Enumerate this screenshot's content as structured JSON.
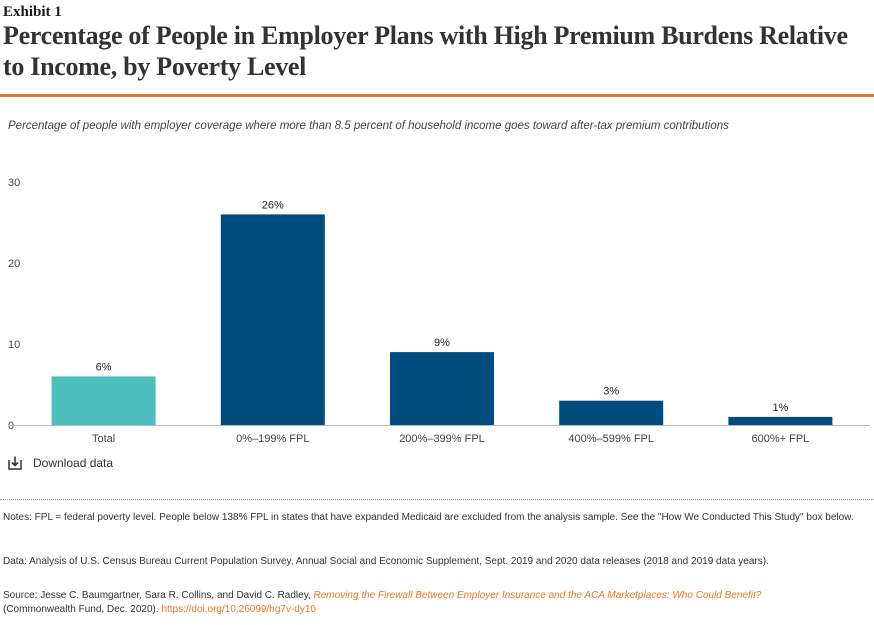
{
  "header": {
    "exhibit": "Exhibit 1",
    "title": "Percentage of People in Employer Plans with High Premium Burdens Relative to Income, by Poverty Level",
    "accent_color": "#e87722"
  },
  "subtitle": "Percentage of people with employer coverage where more than 8.5 percent of household income goes toward after-tax premium contributions",
  "chart_data": {
    "type": "bar",
    "title": "",
    "xlabel": "",
    "ylabel": "",
    "categories": [
      "Total",
      "0%–199% FPL",
      "200%–399% FPL",
      "400%–599% FPL",
      "600%+ FPL"
    ],
    "values": [
      6,
      26,
      9,
      3,
      1
    ],
    "data_labels": [
      "6%",
      "26%",
      "9%",
      "3%",
      "1%"
    ],
    "colors": [
      "#4dbfbf",
      "#004c7e",
      "#004c7e",
      "#004c7e",
      "#004c7e"
    ],
    "ylim": [
      0,
      30
    ],
    "yticks": [
      0,
      10,
      20,
      30
    ],
    "grid": false
  },
  "download": {
    "label": "Download data",
    "icon": "download-icon"
  },
  "notes": {
    "notes_text": "Notes: FPL = federal poverty level. People below 138% FPL in states that have expanded Medicaid are excluded from the analysis sample. See the \"How We Conducted This Study\" box below.",
    "data_text": "Data: Analysis of U.S. Census Bureau Current Population Survey, Annual Social and Economic Supplement, Sept. 2019 and 2020 data releases (2018 and 2019 data years).",
    "source_prefix": "Source: Jesse C. Baumgartner, Sara R. Collins, and David C. Radley,",
    "source_title": "Removing the Firewall Between Employer Insurance and the ACA Marketplaces: Who Could Benefit?",
    "source_suffix": "(Commonwealth Fund, Dec. 2020).",
    "source_doi": "https://doi.org/10.26099/hg7v-dy10"
  }
}
